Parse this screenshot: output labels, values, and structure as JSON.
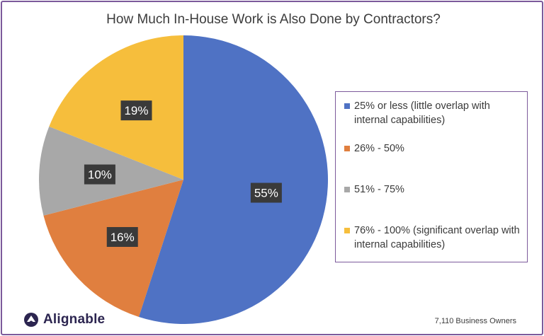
{
  "chart_data": {
    "type": "pie",
    "title": "How Much In-House Work is Also Done by Contractors?",
    "slices": [
      {
        "label": "25% or less (little overlap with internal capabilities)",
        "value": 55,
        "data_label": "55%",
        "color": "#4f72c4"
      },
      {
        "label": "26% - 50%",
        "value": 16,
        "data_label": "16%",
        "color": "#e07f3f"
      },
      {
        "label": "51% - 75%",
        "value": 10,
        "data_label": "10%",
        "color": "#a8a8a8"
      },
      {
        "label": "76% - 100% (significant overlap with internal capabilities)",
        "value": 19,
        "data_label": "19%",
        "color": "#f6be3c"
      }
    ],
    "legend_position": "right"
  },
  "brand": {
    "name": "Alignable",
    "logo_icon": "alignable-logo-icon"
  },
  "footnote": "7,110 Business Owners"
}
